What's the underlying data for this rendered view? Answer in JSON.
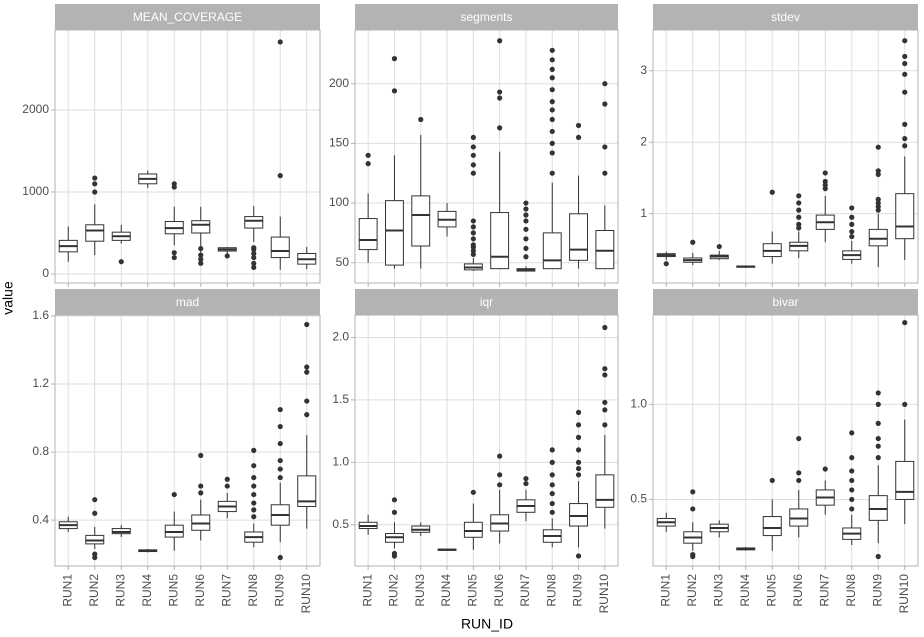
{
  "x_title": "RUN_ID",
  "y_title": "value",
  "categories": [
    "RUN1",
    "RUN2",
    "RUN3",
    "RUN4",
    "RUN5",
    "RUN6",
    "RUN7",
    "RUN8",
    "RUN9",
    "RUN10"
  ],
  "chart_data": [
    {
      "type": "box",
      "title": "MEAN_COVERAGE",
      "ylim": [
        -110,
        2976
      ],
      "yticks": [
        0,
        1000,
        2000
      ],
      "grid": true,
      "color": "#333333",
      "fill": "#ffffff",
      "boxes": [
        {
          "low": 150,
          "q1": 270,
          "median": 340,
          "q3": 410,
          "high": 580,
          "outliers": []
        },
        {
          "low": 230,
          "q1": 400,
          "median": 530,
          "q3": 600,
          "high": 850,
          "outliers": [
            1000,
            1100,
            1170
          ]
        },
        {
          "low": 370,
          "q1": 410,
          "median": 460,
          "q3": 510,
          "high": 600,
          "outliers": [
            150
          ]
        },
        {
          "low": 1050,
          "q1": 1100,
          "median": 1160,
          "q3": 1220,
          "high": 1260,
          "outliers": []
        },
        {
          "low": 350,
          "q1": 490,
          "median": 560,
          "q3": 640,
          "high": 820,
          "outliers": [
            200,
            260,
            1060,
            1100
          ]
        },
        {
          "low": 260,
          "q1": 500,
          "median": 600,
          "q3": 650,
          "high": 820,
          "outliers": [
            130,
            180,
            230,
            310
          ]
        },
        {
          "low": 250,
          "q1": 280,
          "median": 300,
          "q3": 320,
          "high": 330,
          "outliers": [
            220
          ]
        },
        {
          "low": 390,
          "q1": 560,
          "median": 650,
          "q3": 700,
          "high": 830,
          "outliers": [
            80,
            130,
            200,
            250,
            300,
            320
          ]
        },
        {
          "low": 50,
          "q1": 200,
          "median": 280,
          "q3": 450,
          "high": 700,
          "outliers": [
            1200,
            2830
          ]
        },
        {
          "low": 60,
          "q1": 120,
          "median": 180,
          "q3": 250,
          "high": 330,
          "outliers": []
        }
      ]
    },
    {
      "type": "box",
      "title": "segments",
      "ylim": [
        33,
        245
      ],
      "yticks": [
        50,
        100,
        150,
        200
      ],
      "grid": true,
      "color": "#333333",
      "fill": "#ffffff",
      "boxes": [
        {
          "low": 50,
          "q1": 61,
          "median": 69,
          "q3": 87,
          "high": 108,
          "outliers": [
            133,
            140
          ]
        },
        {
          "low": 45,
          "q1": 48,
          "median": 77,
          "q3": 102,
          "high": 140,
          "outliers": [
            194,
            221
          ]
        },
        {
          "low": 45,
          "q1": 64,
          "median": 90,
          "q3": 106,
          "high": 157,
          "outliers": [
            170
          ]
        },
        {
          "low": 72,
          "q1": 80,
          "median": 86,
          "q3": 93,
          "high": 100,
          "outliers": []
        },
        {
          "low": 43,
          "q1": 44,
          "median": 46,
          "q3": 49,
          "high": 54,
          "outliers": [
            57,
            60,
            63,
            65,
            70,
            75,
            80,
            85,
            125,
            132,
            140,
            147,
            155
          ]
        },
        {
          "low": 45,
          "q1": 45,
          "median": 55,
          "q3": 92,
          "high": 143,
          "outliers": [
            163,
            188,
            193,
            236
          ]
        },
        {
          "low": 43,
          "q1": 43,
          "median": 44,
          "q3": 45,
          "high": 47,
          "outliers": [
            55,
            62,
            70,
            78,
            85,
            90,
            95,
            100
          ]
        },
        {
          "low": 45,
          "q1": 45,
          "median": 52,
          "q3": 75,
          "high": 117,
          "outliers": [
            125,
            142,
            150,
            160,
            170,
            178,
            185,
            195,
            205,
            212,
            220,
            228
          ]
        },
        {
          "low": 45,
          "q1": 52,
          "median": 61,
          "q3": 91,
          "high": 123,
          "outliers": [
            155,
            165
          ]
        },
        {
          "low": 45,
          "q1": 45,
          "median": 60,
          "q3": 77,
          "high": 98,
          "outliers": [
            125,
            147,
            183,
            200
          ]
        }
      ]
    },
    {
      "type": "box",
      "title": "stdev",
      "ylim": [
        0.03,
        3.57
      ],
      "yticks": [
        1,
        2,
        3
      ],
      "grid": true,
      "color": "#333333",
      "fill": "#ffffff",
      "boxes": [
        {
          "low": 0.35,
          "q1": 0.4,
          "median": 0.42,
          "q3": 0.44,
          "high": 0.47,
          "outliers": [
            0.3
          ]
        },
        {
          "low": 0.28,
          "q1": 0.32,
          "median": 0.35,
          "q3": 0.38,
          "high": 0.45,
          "outliers": [
            0.6
          ]
        },
        {
          "low": 0.35,
          "q1": 0.37,
          "median": 0.4,
          "q3": 0.42,
          "high": 0.48,
          "outliers": [
            0.54
          ]
        },
        {
          "low": 0.24,
          "q1": 0.25,
          "median": 0.26,
          "q3": 0.265,
          "high": 0.27,
          "outliers": []
        },
        {
          "low": 0.3,
          "q1": 0.4,
          "median": 0.48,
          "q3": 0.58,
          "high": 0.75,
          "outliers": [
            1.3
          ]
        },
        {
          "low": 0.38,
          "q1": 0.48,
          "median": 0.55,
          "q3": 0.6,
          "high": 0.75,
          "outliers": [
            0.8,
            0.85,
            0.95,
            1.05,
            1.15,
            1.25
          ]
        },
        {
          "low": 0.6,
          "q1": 0.78,
          "median": 0.88,
          "q3": 0.98,
          "high": 1.25,
          "outliers": [
            1.35,
            1.4,
            1.45,
            1.57
          ]
        },
        {
          "low": 0.3,
          "q1": 0.36,
          "median": 0.42,
          "q3": 0.48,
          "high": 0.62,
          "outliers": [
            0.68,
            0.75,
            0.85,
            0.95,
            1.08
          ]
        },
        {
          "low": 0.25,
          "q1": 0.55,
          "median": 0.65,
          "q3": 0.78,
          "high": 1.0,
          "outliers": [
            1.05,
            1.1,
            1.15,
            1.2,
            1.55,
            1.6,
            1.93
          ]
        },
        {
          "low": 0.35,
          "q1": 0.65,
          "median": 0.82,
          "q3": 1.28,
          "high": 1.8,
          "outliers": [
            1.95,
            2.05,
            2.25,
            2.7,
            2.95,
            3.1,
            3.2,
            3.42
          ]
        }
      ]
    },
    {
      "type": "box",
      "title": "mad",
      "ylim": [
        0.13,
        1.606
      ],
      "yticks": [
        0.4,
        0.8,
        1.2,
        1.6
      ],
      "grid": true,
      "color": "#333333",
      "fill": "#ffffff",
      "boxes": [
        {
          "low": 0.33,
          "q1": 0.35,
          "median": 0.37,
          "q3": 0.39,
          "high": 0.42,
          "outliers": []
        },
        {
          "low": 0.23,
          "q1": 0.26,
          "median": 0.28,
          "q3": 0.31,
          "high": 0.36,
          "outliers": [
            0.18,
            0.2,
            0.44,
            0.52
          ]
        },
        {
          "low": 0.3,
          "q1": 0.32,
          "median": 0.33,
          "q3": 0.35,
          "high": 0.37,
          "outliers": []
        },
        {
          "low": 0.21,
          "q1": 0.215,
          "median": 0.22,
          "q3": 0.225,
          "high": 0.23,
          "outliers": []
        },
        {
          "low": 0.22,
          "q1": 0.3,
          "median": 0.33,
          "q3": 0.37,
          "high": 0.45,
          "outliers": [
            0.55
          ]
        },
        {
          "low": 0.28,
          "q1": 0.34,
          "median": 0.38,
          "q3": 0.43,
          "high": 0.52,
          "outliers": [
            0.56,
            0.6,
            0.78
          ]
        },
        {
          "low": 0.41,
          "q1": 0.45,
          "median": 0.48,
          "q3": 0.51,
          "high": 0.56,
          "outliers": [
            0.6,
            0.64
          ]
        },
        {
          "low": 0.24,
          "q1": 0.27,
          "median": 0.3,
          "q3": 0.33,
          "high": 0.38,
          "outliers": [
            0.42,
            0.46,
            0.5,
            0.55,
            0.6,
            0.65,
            0.72,
            0.81
          ]
        },
        {
          "low": 0.27,
          "q1": 0.37,
          "median": 0.43,
          "q3": 0.49,
          "high": 0.62,
          "outliers": [
            0.18,
            0.65,
            0.7,
            0.75,
            0.85,
            0.95,
            1.05
          ]
        },
        {
          "low": 0.35,
          "q1": 0.48,
          "median": 0.51,
          "q3": 0.66,
          "high": 0.9,
          "outliers": [
            1.02,
            1.1,
            1.27,
            1.3,
            1.55
          ]
        }
      ]
    },
    {
      "type": "box",
      "title": "iqr",
      "ylim": [
        0.17,
        2.18
      ],
      "yticks": [
        0.5,
        {
          "value": 1,
          "label": "1.0"
        },
        1.5,
        {
          "value": 2,
          "label": "2.0"
        }
      ],
      "grid": true,
      "color": "#333333",
      "fill": "#ffffff",
      "boxes": [
        {
          "low": 0.42,
          "q1": 0.47,
          "median": 0.49,
          "q3": 0.52,
          "high": 0.58,
          "outliers": []
        },
        {
          "low": 0.31,
          "q1": 0.36,
          "median": 0.4,
          "q3": 0.43,
          "high": 0.52,
          "outliers": [
            0.25,
            0.27,
            0.6,
            0.7
          ]
        },
        {
          "low": 0.41,
          "q1": 0.44,
          "median": 0.46,
          "q3": 0.49,
          "high": 0.52,
          "outliers": []
        },
        {
          "low": 0.29,
          "q1": 0.295,
          "median": 0.3,
          "q3": 0.305,
          "high": 0.31,
          "outliers": []
        },
        {
          "low": 0.3,
          "q1": 0.4,
          "median": 0.45,
          "q3": 0.52,
          "high": 0.67,
          "outliers": [
            0.76
          ]
        },
        {
          "low": 0.35,
          "q1": 0.45,
          "median": 0.51,
          "q3": 0.58,
          "high": 0.78,
          "outliers": [
            0.82,
            0.9,
            1.05
          ]
        },
        {
          "low": 0.53,
          "q1": 0.6,
          "median": 0.65,
          "q3": 0.7,
          "high": 0.78,
          "outliers": [
            0.83,
            0.87
          ]
        },
        {
          "low": 0.32,
          "q1": 0.36,
          "median": 0.41,
          "q3": 0.46,
          "high": 0.55,
          "outliers": [
            0.6,
            0.67,
            0.75,
            0.82,
            0.9,
            1.0,
            1.1
          ]
        },
        {
          "low": 0.32,
          "q1": 0.49,
          "median": 0.57,
          "q3": 0.67,
          "high": 0.85,
          "outliers": [
            0.25,
            0.9,
            0.95,
            1.0,
            1.1,
            1.2,
            1.3,
            1.4
          ]
        },
        {
          "low": 0.47,
          "q1": 0.64,
          "median": 0.7,
          "q3": 0.9,
          "high": 1.22,
          "outliers": [
            1.3,
            1.42,
            1.48,
            1.7,
            1.75,
            2.08
          ]
        }
      ]
    },
    {
      "type": "box",
      "title": "bivar",
      "ylim": [
        0.15,
        1.47
      ],
      "yticks": [
        0.5,
        {
          "value": 1,
          "label": "1.0"
        }
      ],
      "grid": true,
      "color": "#333333",
      "fill": "#ffffff",
      "boxes": [
        {
          "low": 0.33,
          "q1": 0.36,
          "median": 0.38,
          "q3": 0.4,
          "high": 0.43,
          "outliers": []
        },
        {
          "low": 0.23,
          "q1": 0.27,
          "median": 0.3,
          "q3": 0.33,
          "high": 0.38,
          "outliers": [
            0.2,
            0.21,
            0.45,
            0.54
          ]
        },
        {
          "low": 0.3,
          "q1": 0.33,
          "median": 0.35,
          "q3": 0.37,
          "high": 0.39,
          "outliers": []
        },
        {
          "low": 0.23,
          "q1": 0.235,
          "median": 0.24,
          "q3": 0.245,
          "high": 0.25,
          "outliers": []
        },
        {
          "low": 0.23,
          "q1": 0.31,
          "median": 0.35,
          "q3": 0.41,
          "high": 0.5,
          "outliers": [
            0.6
          ]
        },
        {
          "low": 0.3,
          "q1": 0.36,
          "median": 0.4,
          "q3": 0.45,
          "high": 0.55,
          "outliers": [
            0.6,
            0.64,
            0.82
          ]
        },
        {
          "low": 0.42,
          "q1": 0.47,
          "median": 0.51,
          "q3": 0.55,
          "high": 0.6,
          "outliers": [
            0.66
          ]
        },
        {
          "low": 0.26,
          "q1": 0.29,
          "median": 0.32,
          "q3": 0.35,
          "high": 0.42,
          "outliers": [
            0.45,
            0.5,
            0.55,
            0.6,
            0.65,
            0.72,
            0.85
          ]
        },
        {
          "low": 0.27,
          "q1": 0.39,
          "median": 0.45,
          "q3": 0.52,
          "high": 0.68,
          "outliers": [
            0.2,
            0.72,
            0.78,
            0.82,
            0.9,
            1.0,
            1.06
          ]
        },
        {
          "low": 0.37,
          "q1": 0.5,
          "median": 0.54,
          "q3": 0.7,
          "high": 0.92,
          "outliers": [
            1.0,
            1.43
          ]
        }
      ]
    }
  ]
}
